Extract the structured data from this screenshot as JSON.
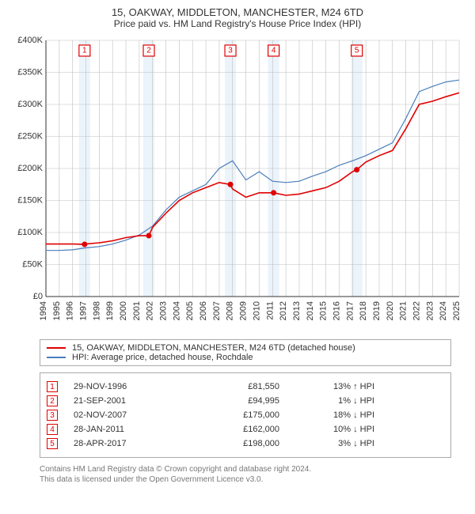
{
  "title_line1": "15, OAKWAY, MIDDLETON, MANCHESTER, M24 6TD",
  "title_line2": "Price paid vs. HM Land Registry's House Price Index (HPI)",
  "chart": {
    "type": "line",
    "background_color": "#ffffff",
    "grid_color": "#bfbfbf",
    "axis_color": "#333333",
    "x_years": [
      1994,
      1995,
      1996,
      1997,
      1998,
      1999,
      2000,
      2001,
      2002,
      2003,
      2004,
      2005,
      2006,
      2007,
      2008,
      2009,
      2010,
      2011,
      2012,
      2013,
      2014,
      2015,
      2016,
      2017,
      2018,
      2019,
      2020,
      2021,
      2022,
      2023,
      2024,
      2025
    ],
    "ylim": [
      0,
      400000
    ],
    "ytick_step": 50000,
    "ytick_labels": [
      "£0",
      "£50K",
      "£100K",
      "£150K",
      "£200K",
      "£250K",
      "£300K",
      "£350K",
      "£400K"
    ],
    "series1": {
      "name": "15, OAKWAY, MIDDLETON, MANCHESTER, M24 6TD (detached house)",
      "color": "#e00000",
      "line_width": 1.6,
      "data_years": [
        1994,
        1995,
        1996,
        1996.9,
        1997,
        1998,
        1999,
        2000,
        2001,
        2001.72,
        2002,
        2003,
        2004,
        2005,
        2006,
        2007,
        2007.84,
        2008,
        2009,
        2010,
        2011,
        2011.08,
        2012,
        2013,
        2014,
        2015,
        2016,
        2017,
        2017.32,
        2018,
        2019,
        2020,
        2021,
        2022,
        2023,
        2024,
        2025
      ],
      "data_values": [
        82000,
        82000,
        82000,
        81550,
        82000,
        84000,
        87000,
        92000,
        95000,
        94995,
        108000,
        130000,
        150000,
        162000,
        170000,
        178000,
        175000,
        168000,
        155000,
        162000,
        162000,
        162000,
        158000,
        160000,
        165000,
        170000,
        180000,
        195000,
        198000,
        210000,
        220000,
        228000,
        262000,
        300000,
        305000,
        312000,
        318000
      ]
    },
    "series2": {
      "name": "HPI: Average price, detached house, Rochdale",
      "color": "#4a7ebb",
      "line_width": 1.2,
      "data_years": [
        1994,
        1995,
        1996,
        1997,
        1998,
        1999,
        2000,
        2001,
        2002,
        2003,
        2004,
        2005,
        2006,
        2007,
        2008,
        2009,
        2010,
        2011,
        2012,
        2013,
        2014,
        2015,
        2016,
        2017,
        2018,
        2019,
        2020,
        2021,
        2022,
        2023,
        2024,
        2025
      ],
      "data_values": [
        72000,
        72000,
        73000,
        76000,
        78000,
        82000,
        88000,
        96000,
        110000,
        135000,
        155000,
        165000,
        175000,
        200000,
        212000,
        182000,
        195000,
        180000,
        178000,
        180000,
        188000,
        195000,
        205000,
        212000,
        220000,
        230000,
        240000,
        278000,
        320000,
        328000,
        335000,
        338000
      ]
    },
    "sale_markers": [
      {
        "n": "1",
        "year": 1996.9,
        "value": 81550
      },
      {
        "n": "2",
        "year": 2001.72,
        "value": 94995
      },
      {
        "n": "3",
        "year": 2007.84,
        "value": 175000
      },
      {
        "n": "4",
        "year": 2011.08,
        "value": 162000
      },
      {
        "n": "5",
        "year": 2017.32,
        "value": 198000
      }
    ],
    "band_color": "#dbe9f7"
  },
  "legend": {
    "series1_label": "15, OAKWAY, MIDDLETON, MANCHESTER, M24 6TD (detached house)",
    "series2_label": "HPI: Average price, detached house, Rochdale",
    "series1_color": "#e00000",
    "series2_color": "#4a7ebb"
  },
  "sales": [
    {
      "n": "1",
      "date": "29-NOV-1996",
      "price": "£81,550",
      "pct": "13% ↑ HPI"
    },
    {
      "n": "2",
      "date": "21-SEP-2001",
      "price": "£94,995",
      "pct": "1% ↓ HPI"
    },
    {
      "n": "3",
      "date": "02-NOV-2007",
      "price": "£175,000",
      "pct": "18% ↓ HPI"
    },
    {
      "n": "4",
      "date": "28-JAN-2011",
      "price": "£162,000",
      "pct": "10% ↓ HPI"
    },
    {
      "n": "5",
      "date": "28-APR-2017",
      "price": "£198,000",
      "pct": "3% ↓ HPI"
    }
  ],
  "sale_marker_color": "#e00000",
  "footer_line1": "Contains HM Land Registry data © Crown copyright and database right 2024.",
  "footer_line2": "This data is licensed under the Open Government Licence v3.0."
}
